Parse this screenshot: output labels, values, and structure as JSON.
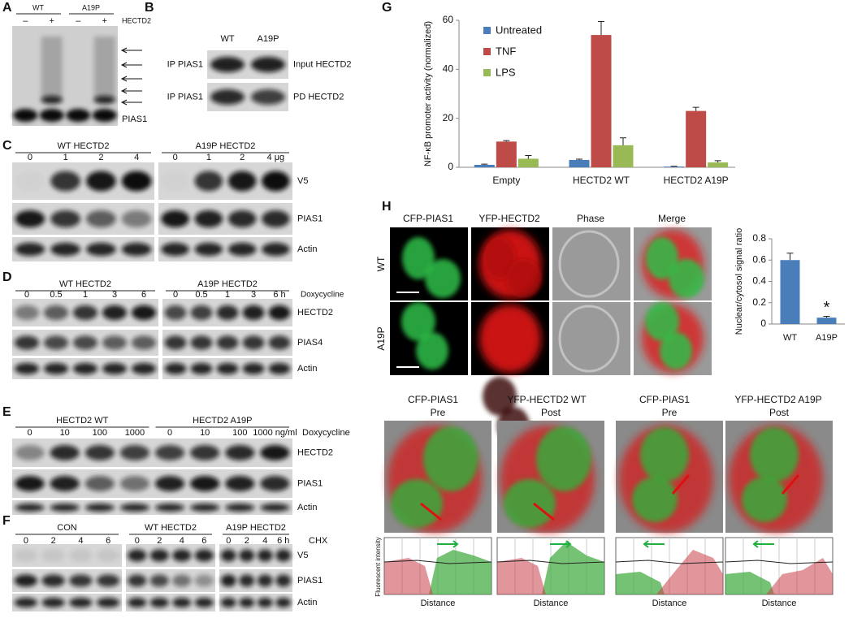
{
  "panel_a": {
    "label": "A",
    "groups": [
      "WT",
      "A19P"
    ],
    "lanes": [
      "–",
      "+",
      "–",
      "+"
    ],
    "treatment": "HECTD2",
    "rows": [
      "PIAS1"
    ]
  },
  "panel_b": {
    "label": "B",
    "groups": [
      "WT",
      "A19P"
    ],
    "left_rows": [
      "IP PIAS1",
      "IP PIAS1"
    ],
    "rows": [
      "Input HECTD2",
      "PD HECTD2"
    ]
  },
  "panel_c": {
    "label": "C",
    "groups": [
      "WT HECTD2",
      "A19P HECTD2"
    ],
    "lanes": [
      "0",
      "1",
      "2",
      "4",
      "0",
      "1",
      "2",
      "4 μg"
    ],
    "rows": [
      "V5",
      "PIAS1",
      "Actin"
    ]
  },
  "panel_d": {
    "label": "D",
    "groups": [
      "WT HECTD2",
      "A19P HECTD2"
    ],
    "lanes": [
      "0",
      "0.5",
      "1",
      "3",
      "6",
      "0",
      "0.5",
      "1",
      "3",
      "6 h"
    ],
    "treatment": "Doxycycline",
    "rows": [
      "HECTD2",
      "PIAS4",
      "Actin"
    ]
  },
  "panel_e": {
    "label": "E",
    "groups": [
      "HECTD2 WT",
      "HECTD2 A19P"
    ],
    "lanes": [
      "0",
      "10",
      "100",
      "1000",
      "0",
      "10",
      "100",
      "1000 ng/ml"
    ],
    "treatment": "Doxycycline",
    "rows": [
      "HECTD2",
      "PIAS1",
      "Actin"
    ]
  },
  "panel_f": {
    "label": "F",
    "groups": [
      "CON",
      "WT HECTD2",
      "A19P HECTD2"
    ],
    "lanes": [
      "0",
      "2",
      "4",
      "6",
      "0",
      "2",
      "4",
      "6",
      "0",
      "2",
      "4",
      "6 h"
    ],
    "treatment": "CHX",
    "rows": [
      "V5",
      "PIAS1",
      "Actin"
    ]
  },
  "panel_g": {
    "label": "G"
  },
  "panel_h": {
    "label": "H",
    "columns": [
      "CFP-PIAS1",
      "YFP-HECTD2",
      "Phase",
      "Merge"
    ],
    "rows": [
      "WT",
      "A19P"
    ],
    "live": [
      {
        "probe": "CFP-PIAS1",
        "target": "YFP-HECTD2 WT",
        "conditions": [
          "Pre",
          "Post"
        ]
      },
      {
        "probe": "CFP-PIAS1",
        "target": "YFP-HECTD2 A19P",
        "conditions": [
          "Pre",
          "Post"
        ]
      }
    ],
    "profile_ylabel": "Fluorescent intensity",
    "profile_xlabel": "Distance"
  },
  "chart_data": [
    {
      "type": "bar",
      "y_label": "NF-κB promoter activity (normalized)",
      "categories": [
        "Empty",
        "HECTD2 WT",
        "HECTD2 A19P"
      ],
      "series": [
        {
          "name": "Untreated",
          "color": "#4a7ebb",
          "values": [
            1,
            3,
            0.3
          ],
          "errors": [
            0.3,
            0.3,
            0.1
          ]
        },
        {
          "name": "TNF",
          "color": "#be4b48",
          "values": [
            10.5,
            54,
            23
          ],
          "errors": [
            0.4,
            5.5,
            1.5
          ]
        },
        {
          "name": "LPS",
          "color": "#98b954",
          "values": [
            3.5,
            9,
            2
          ],
          "errors": [
            1.3,
            3,
            0.7
          ]
        }
      ],
      "ylim": [
        0,
        60
      ],
      "yticks": [
        0,
        20,
        40,
        60
      ],
      "legend": "upper left"
    },
    {
      "type": "bar",
      "y_label": "Nuclear/cytosol signal ratio",
      "categories": [
        "WT",
        "A19P"
      ],
      "values": [
        0.6,
        0.06
      ],
      "errors": [
        0.065,
        0.012
      ],
      "color": "#4a7ebb",
      "ylim": [
        0,
        0.8
      ],
      "yticks": [
        0,
        0.2,
        0.4,
        0.6,
        0.8
      ],
      "annotations": [
        "*"
      ]
    }
  ]
}
